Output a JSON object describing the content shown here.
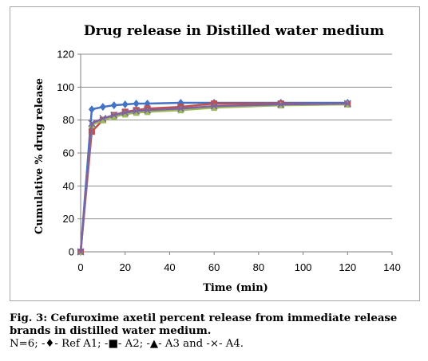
{
  "chart_data": {
    "type": "line",
    "title": "Drug release in Distilled water medium",
    "xlabel": "Time (min)",
    "ylabel": "Cumulative % drug release",
    "xlim": [
      0,
      140
    ],
    "ylim": [
      0,
      120
    ],
    "xticks": [
      0,
      20,
      40,
      60,
      80,
      100,
      120,
      140
    ],
    "yticks": [
      0,
      20,
      40,
      60,
      80,
      100,
      120
    ],
    "grid": true,
    "legend": "none",
    "series": [
      {
        "color": "#4472C4",
        "marker": "diamond",
        "x": [
          0,
          5,
          10,
          15,
          20,
          25,
          30,
          45,
          60,
          90,
          120
        ],
        "y": [
          0,
          86.5,
          88,
          89,
          89.5,
          90,
          90,
          90.5,
          90.5,
          90.5,
          90.5
        ]
      },
      {
        "color": "#C0504D",
        "marker": "square",
        "x": [
          0,
          5,
          10,
          15,
          20,
          25,
          30,
          45,
          60,
          90,
          120
        ],
        "y": [
          0,
          73,
          80,
          83,
          85,
          86,
          87,
          88,
          90,
          90,
          89.5
        ]
      },
      {
        "color": "#9BBB59",
        "marker": "triangle",
        "x": [
          0,
          5,
          10,
          15,
          20,
          25,
          30,
          45,
          60,
          90,
          120
        ],
        "y": [
          0,
          77,
          80,
          82,
          83.5,
          84.5,
          85,
          86,
          87.5,
          89,
          89.5
        ]
      },
      {
        "color": "#7F63A0",
        "marker": "x",
        "x": [
          0,
          5,
          10,
          15,
          20,
          25,
          30,
          45,
          60,
          90,
          120
        ],
        "y": [
          0,
          78,
          81,
          83,
          84.5,
          85.5,
          86,
          87,
          88.5,
          89.5,
          90
        ]
      }
    ]
  },
  "caption": {
    "label": "Fig. 3:",
    "text": "Cefuroxime axetil percent release from immediate release brands in distilled water medium.",
    "legend_note": "N=6; -♦- Ref A1; -■- A2; -▲- A3 and -×- A4."
  }
}
